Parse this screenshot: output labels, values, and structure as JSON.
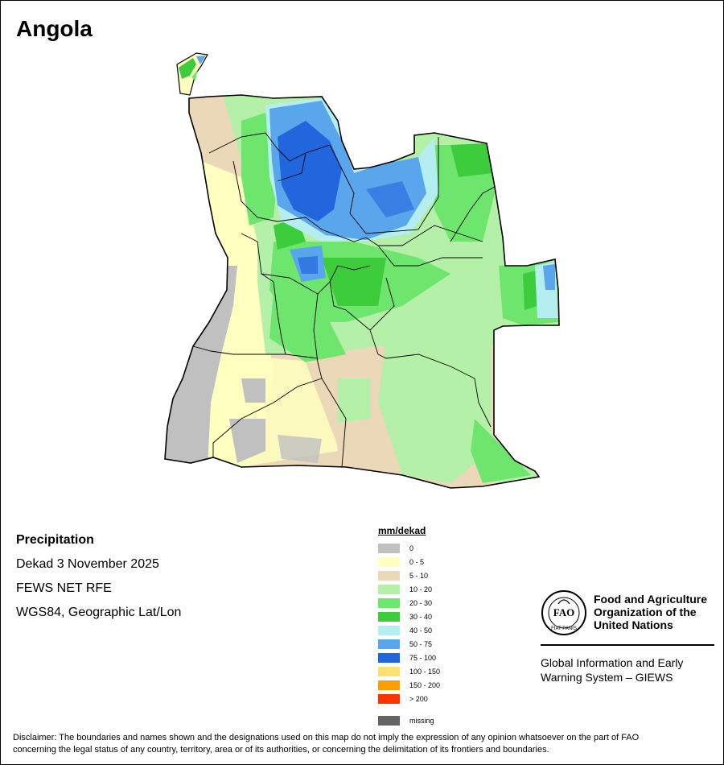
{
  "map": {
    "title": "Angola",
    "colors": {
      "gray": "#c0c0c0",
      "yellow": "#ffffc0",
      "tan": "#ead8b8",
      "lightgreen": "#b4f0a8",
      "green": "#6ee66e",
      "darkgreen": "#3ccc3c",
      "cyan": "#b4eef0",
      "lightblue": "#5aa6ec",
      "blue": "#2266dd"
    }
  },
  "info": {
    "heading": "Precipitation",
    "period": "Dekad 3 November 2025",
    "source": "FEWS NET RFE",
    "projection": "WGS84, Geographic Lat/Lon"
  },
  "legend": {
    "title": "mm/dekad",
    "items": [
      {
        "label": "0",
        "color": "#c0c0c0"
      },
      {
        "label": "0 - 5",
        "color": "#ffffc0"
      },
      {
        "label": "5 - 10",
        "color": "#ead8b8"
      },
      {
        "label": "10 - 20",
        "color": "#b4f0a8"
      },
      {
        "label": "20 - 30",
        "color": "#6ee66e"
      },
      {
        "label": "30 - 40",
        "color": "#3ccc3c"
      },
      {
        "label": "40 - 50",
        "color": "#b4eef0"
      },
      {
        "label": "50 - 75",
        "color": "#5aa6ec"
      },
      {
        "label": "75 - 100",
        "color": "#2266dd"
      },
      {
        "label": "100 - 150",
        "color": "#ffe070"
      },
      {
        "label": "150 - 200",
        "color": "#ff9e00"
      },
      {
        "label": "> 200",
        "color": "#ff3200"
      }
    ],
    "missing": {
      "label": "missing",
      "color": "#646464"
    }
  },
  "logo": {
    "org_line1": "Food and Agriculture",
    "org_line2": "Organization of the",
    "org_line3": "United Nations",
    "fao_letters": "FAO",
    "motto": "FIAT PANIS",
    "giews_line1": "Global Information and Early",
    "giews_line2": "Warning System – GIEWS"
  },
  "disclaimer": {
    "line1": "Disclaimer: The boundaries and names shown and the designations used on this map do not imply the expression of any opinion whatsoever on the part of FAO",
    "line2": "concerning the legal status of any country, territory, area or of its authorities, or concerning the delimitation of its frontiers and boundaries."
  }
}
